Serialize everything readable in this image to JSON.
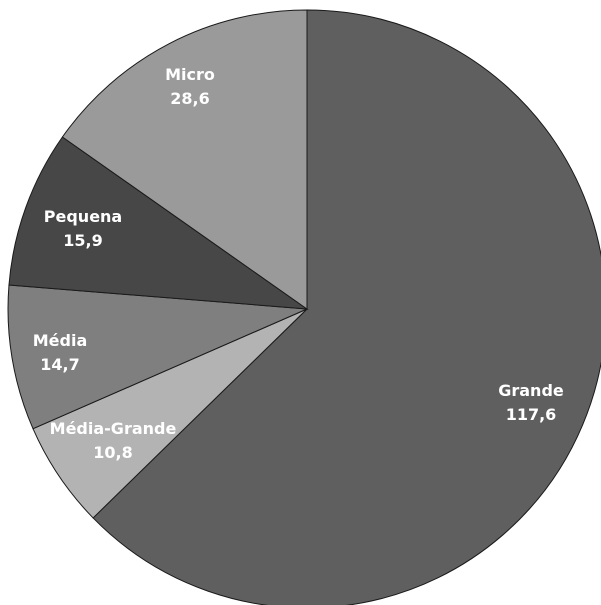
{
  "chart_data": {
    "type": "pie",
    "title": "",
    "start_angle_deg": 0,
    "direction": "clockwise",
    "slices": [
      {
        "label": "Grande",
        "value": 117.6,
        "value_text": "117,6",
        "color": "#5f5f5f"
      },
      {
        "label": "Média-Grande",
        "value": 10.8,
        "value_text": "10,8",
        "color": "#b3b3b3"
      },
      {
        "label": "Média",
        "value": 14.7,
        "value_text": "14,7",
        "color": "#7f7f7f"
      },
      {
        "label": "Pequena",
        "value": 15.9,
        "value_text": "15,9",
        "color": "#474747"
      },
      {
        "label": "Micro",
        "value": 28.6,
        "value_text": "28,6",
        "color": "#9a9a9a"
      }
    ]
  }
}
